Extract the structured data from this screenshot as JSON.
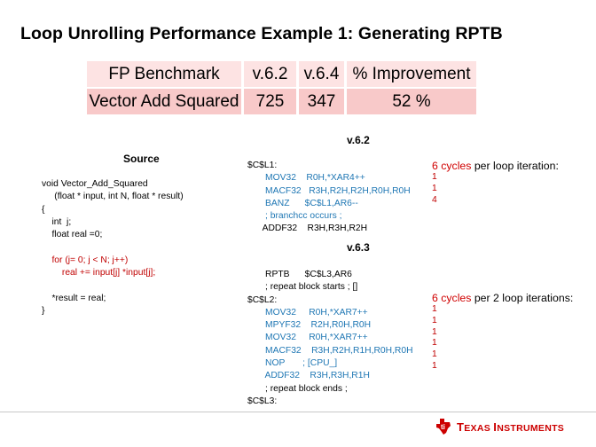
{
  "title": "Loop Unrolling Performance Example 1: Generating RPTB",
  "benchmark_table": {
    "headers": [
      "FP Benchmark",
      "v.6.2",
      "v.6.4",
      "% Improvement"
    ],
    "row": [
      "Vector Add Squared",
      "725",
      "347",
      "52 %"
    ]
  },
  "source": {
    "title": "Source",
    "lines": [
      {
        "text": "void Vector_Add_Squared",
        "color": "black"
      },
      {
        "text": "     (float * input, int N, float * result)",
        "color": "black"
      },
      {
        "text": "{",
        "color": "black"
      },
      {
        "text": "    int  j;",
        "color": "black"
      },
      {
        "text": "    float real =0;",
        "color": "black"
      },
      {
        "text": "",
        "color": "black"
      },
      {
        "text": "    for (j= 0; j < N; j++)",
        "color": "red"
      },
      {
        "text": "        real += input[j] *input[j];",
        "color": "red"
      },
      {
        "text": "",
        "color": "black"
      },
      {
        "text": "    *result = real;",
        "color": "black"
      },
      {
        "text": "}",
        "color": "black"
      }
    ]
  },
  "v62": {
    "title": "v.6.2",
    "lines": [
      {
        "text": "$C$L1:",
        "color": "black"
      },
      {
        "text": "       MOV32    R0H,*XAR4++",
        "color": "blue"
      },
      {
        "text": "       MACF32   R3H,R2H,R2H,R0H,R0H",
        "color": "blue"
      },
      {
        "text": "       BANZ      $C$L1,AR6--",
        "color": "blue"
      },
      {
        "text": "       ; branchcc occurs ;",
        "color": "blue"
      },
      {
        "text": "      ADDF32    R3H,R3H,R2H",
        "color": "black"
      }
    ],
    "cycles_bold": "6 cycles",
    "cycles_rest": " per loop iteration:",
    "counts": [
      "1",
      "1",
      "4"
    ]
  },
  "v63": {
    "title": "v.6.3",
    "lines": [
      {
        "text": "       RPTB      $C$L3,AR6",
        "color": "black"
      },
      {
        "text": "       ; repeat block starts ; []",
        "color": "black"
      },
      {
        "text": "$C$L2:",
        "color": "black"
      },
      {
        "text": "       MOV32     R0H,*XAR7++",
        "color": "blue"
      },
      {
        "text": "       MPYF32    R2H,R0H,R0H",
        "color": "blue"
      },
      {
        "text": "       MOV32     R0H,*XAR7++",
        "color": "blue"
      },
      {
        "text": "       MACF32    R3H,R2H,R1H,R0H,R0H",
        "color": "blue"
      },
      {
        "text": "       NOP       ; [CPU_]",
        "color": "blue"
      },
      {
        "text": "       ADDF32    R3H,R3H,R1H",
        "color": "blue"
      },
      {
        "text": "       ; repeat block ends ;",
        "color": "black"
      },
      {
        "text": "$C$L3:",
        "color": "black"
      }
    ],
    "cycles_bold": "6 cycles",
    "cycles_rest": " per 2 loop iterations:",
    "counts": [
      "1",
      "1",
      "1",
      "1",
      "1",
      "1"
    ]
  },
  "logo": {
    "text_big_1": "T",
    "text_small_1": "EXAS ",
    "text_big_2": "I",
    "text_small_2": "NSTRUMENTS"
  }
}
